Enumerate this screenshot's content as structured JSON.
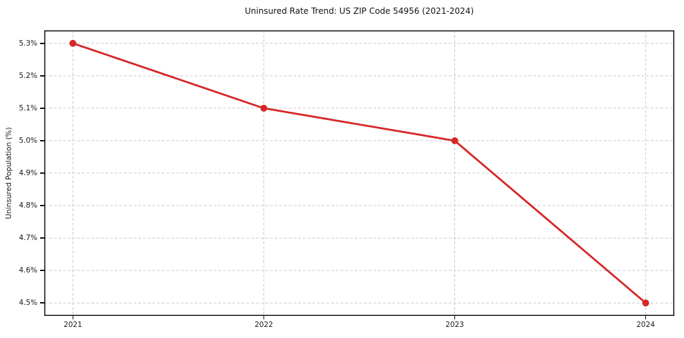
{
  "chart_data": {
    "type": "line",
    "title": "Uninsured Rate Trend: US ZIP Code 54956 (2021-2024)",
    "xlabel": "",
    "ylabel": "Uninsured Population (%)",
    "x": [
      2021,
      2022,
      2023,
      2024
    ],
    "x_tick_labels": [
      "2021",
      "2022",
      "2023",
      "2024"
    ],
    "values": [
      5.3,
      5.1,
      5.0,
      4.5
    ],
    "y_ticks": [
      4.5,
      4.6,
      4.7,
      4.8,
      4.9,
      5.0,
      5.1,
      5.2,
      5.3
    ],
    "y_tick_labels": [
      "4.5%",
      "4.6%",
      "4.7%",
      "4.8%",
      "4.9%",
      "5.0%",
      "5.1%",
      "5.2%",
      "5.3%"
    ],
    "xlim": [
      2020.85,
      2024.15
    ],
    "ylim": [
      4.46,
      5.34
    ],
    "grid": true,
    "legend": "none",
    "line_color": "#d62728",
    "grid_color": "#c9c9c9",
    "frame_color": "#111111",
    "marker": "circle"
  }
}
